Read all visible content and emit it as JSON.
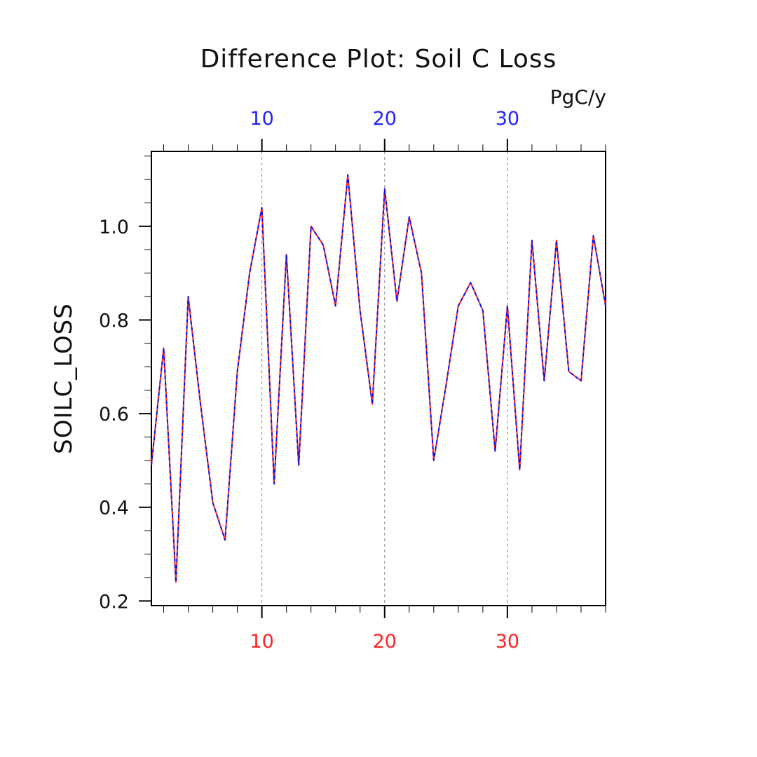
{
  "chart_data": {
    "type": "line",
    "title": "Difference Plot: Soil C Loss",
    "units": "PgC/y",
    "ylabel": "SOILC_LOSS",
    "xlabel": "",
    "xlim": [
      1,
      38
    ],
    "ylim": [
      0.19,
      1.16
    ],
    "yticks": [
      0.2,
      0.4,
      0.6,
      0.8,
      1.0
    ],
    "ytick_labels": [
      "0.2",
      "0.4",
      "0.6",
      "0.8",
      "1.0"
    ],
    "xticks": [
      10,
      20,
      30
    ],
    "xtick_labels_bottom": [
      "10",
      "20",
      "30"
    ],
    "xtick_labels_top": [
      "10",
      "20",
      "30"
    ],
    "grid": "vertical dashed at major x ticks",
    "colors": {
      "bottom_axis": "#ff2222",
      "top_axis": "#2222ff",
      "series_a": "#ff2222",
      "series_b": "#1111ee",
      "grid": "#888888"
    },
    "x": [
      1,
      2,
      3,
      4,
      5,
      6,
      7,
      8,
      9,
      10,
      11,
      12,
      13,
      14,
      15,
      16,
      17,
      18,
      19,
      20,
      21,
      22,
      23,
      24,
      25,
      26,
      27,
      28,
      29,
      30,
      31,
      32,
      33,
      34,
      35,
      36,
      37,
      38
    ],
    "series": [
      {
        "values": [
          0.49,
          0.74,
          0.24,
          0.85,
          0.62,
          0.41,
          0.33,
          0.69,
          0.9,
          1.04,
          0.45,
          0.94,
          0.49,
          1.0,
          0.96,
          0.83,
          1.11,
          0.82,
          0.62,
          1.08,
          0.84,
          1.02,
          0.9,
          0.5,
          0.66,
          0.83,
          0.88,
          0.82,
          0.52,
          0.83,
          0.48,
          0.97,
          0.67,
          0.97,
          0.69,
          0.67,
          0.98,
          0.83
        ]
      },
      {
        "values": [
          0.49,
          0.74,
          0.24,
          0.85,
          0.62,
          0.41,
          0.33,
          0.69,
          0.9,
          1.04,
          0.45,
          0.94,
          0.49,
          1.0,
          0.96,
          0.83,
          1.11,
          0.82,
          0.62,
          1.08,
          0.84,
          1.02,
          0.9,
          0.5,
          0.66,
          0.83,
          0.88,
          0.82,
          0.52,
          0.83,
          0.48,
          0.97,
          0.67,
          0.97,
          0.69,
          0.67,
          0.98,
          0.83
        ]
      }
    ]
  }
}
